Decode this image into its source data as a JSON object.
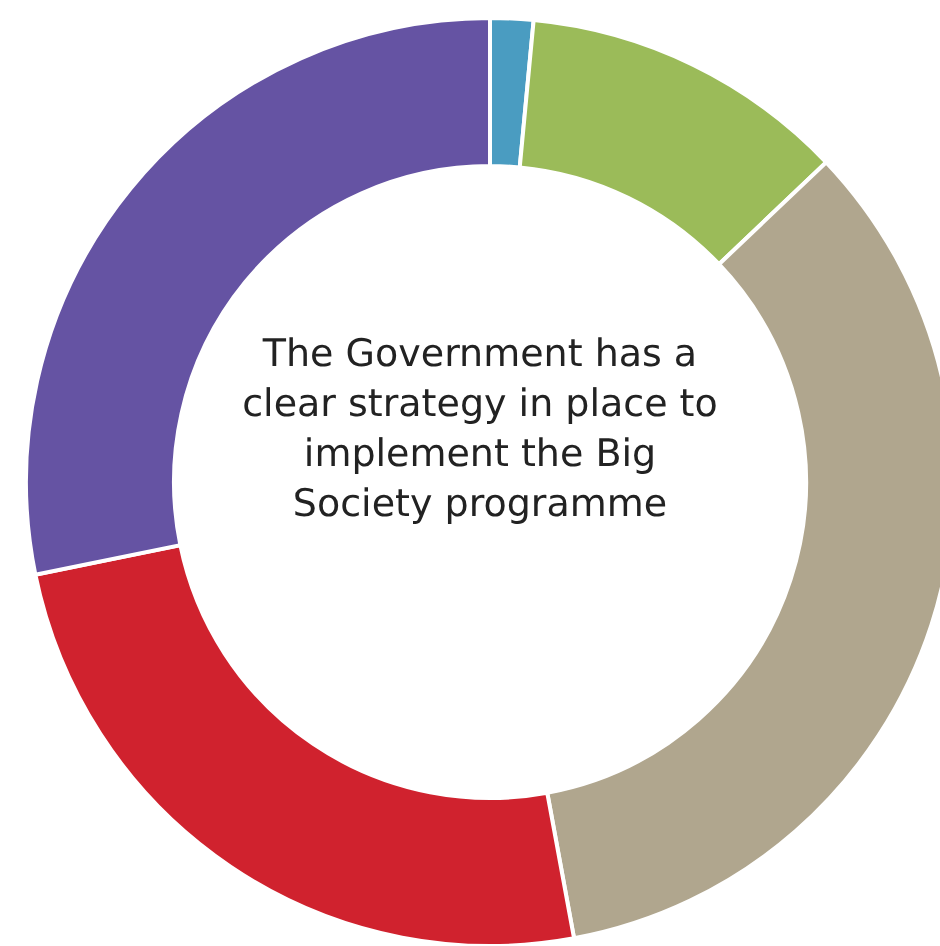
{
  "chart_data": {
    "type": "donut",
    "title": "The Government has a clear strategy in place to implement the Big Society programme",
    "categories": [
      null,
      null,
      null,
      null,
      null
    ],
    "values": [
      1.5,
      11.4,
      34.2,
      24.7,
      28.2
    ],
    "colors": [
      "#4a9cc1",
      "#9bbb59",
      "#b0a68e",
      "#d0222e",
      "#6553a3"
    ]
  }
}
